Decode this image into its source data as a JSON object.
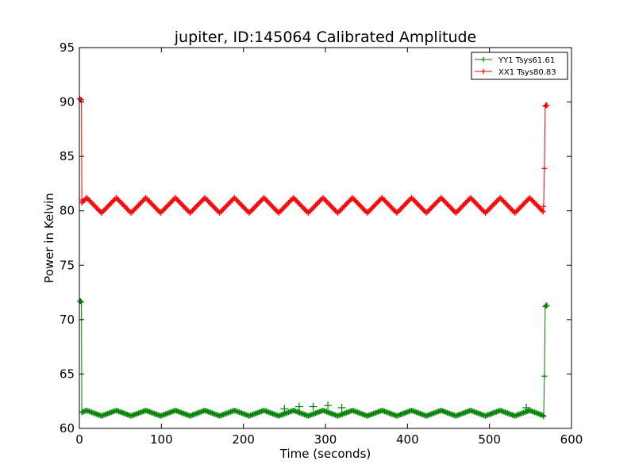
{
  "chart_data": {
    "type": "line",
    "title": "jupiter, ID:145064 Calibrated Amplitude",
    "xlabel": "Time (seconds)",
    "ylabel": "Power in Kelvin",
    "xlim": [
      0,
      600
    ],
    "ylim": [
      60,
      95
    ],
    "xticks": [
      0,
      100,
      200,
      300,
      400,
      500,
      600
    ],
    "yticks": [
      60,
      65,
      70,
      75,
      80,
      85,
      90,
      95
    ],
    "grid": false,
    "legend_position": "top-right",
    "series": [
      {
        "name": "YY1 Tsys61.61",
        "color": "#008000",
        "marker": "+",
        "baseline": 61.4,
        "wave_amplitude": 0.25,
        "wave_period": 36,
        "start_points": [
          [
            0.5,
            71.7
          ],
          [
            1.5,
            71.7
          ],
          [
            2.5,
            71.6
          ],
          [
            3.0,
            61.5
          ]
        ],
        "end_points": [
          [
            566,
            61.1
          ],
          [
            567,
            64.8
          ],
          [
            568,
            71.2
          ],
          [
            569,
            71.3
          ],
          [
            570,
            71.3
          ]
        ],
        "glitches": [
          [
            250,
            61.8
          ],
          [
            268,
            62.0
          ],
          [
            285,
            62.0
          ],
          [
            303,
            62.1
          ],
          [
            320,
            61.9
          ],
          [
            545,
            61.9
          ]
        ],
        "t_start": 3,
        "t_end": 566
      },
      {
        "name": "XX1 Tsys80.83",
        "color": "#ff0000",
        "marker": "+",
        "baseline": 80.5,
        "wave_amplitude": 0.7,
        "wave_period": 36,
        "start_points": [
          [
            0.5,
            90.3
          ],
          [
            1.5,
            90.2
          ],
          [
            2.5,
            90.2
          ],
          [
            3.0,
            81.0
          ]
        ],
        "end_points": [
          [
            566,
            80.4
          ],
          [
            567,
            83.9
          ],
          [
            568,
            89.6
          ],
          [
            569,
            89.7
          ],
          [
            570,
            89.7
          ]
        ],
        "glitches": [],
        "t_start": 3,
        "t_end": 566
      }
    ]
  }
}
